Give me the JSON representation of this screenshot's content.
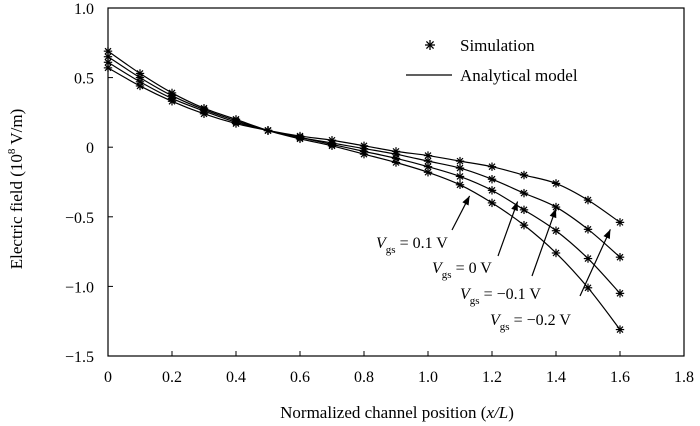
{
  "chart_data": {
    "type": "line",
    "xlabel": {
      "text": "Normalized channel position (",
      "italic": "x/L",
      "suffix": ")"
    },
    "ylabel": {
      "text": "Electric field (10",
      "sup": "8",
      "suffix": " V/m)"
    },
    "xlim": [
      0,
      1.8
    ],
    "ylim": [
      -1.5,
      1.0
    ],
    "x_ticks": [
      "0",
      "0.2",
      "0.4",
      "0.6",
      "0.8",
      "1.0",
      "1.2",
      "1.4",
      "1.6",
      "1.8"
    ],
    "y_ticks": [
      "1.0",
      "0.5",
      "0",
      "-0.5",
      "-1.0",
      "-1.5"
    ],
    "legend": [
      {
        "label": "Simulation",
        "marker": "star"
      },
      {
        "label": "Analytical model",
        "marker": "line"
      }
    ],
    "legend_position": "top-right",
    "grid": false,
    "series": [
      {
        "vgs": "0.1",
        "x": [
          0.0,
          0.1,
          0.2,
          0.3,
          0.4,
          0.5,
          0.6,
          0.7,
          0.8,
          0.9,
          1.0,
          1.1,
          1.2,
          1.3,
          1.4,
          1.5,
          1.6
        ],
        "y": [
          0.57,
          0.44,
          0.33,
          0.24,
          0.17,
          0.12,
          0.08,
          0.05,
          0.01,
          -0.03,
          -0.06,
          -0.1,
          -0.14,
          -0.2,
          -0.26,
          -0.38,
          -0.54
        ]
      },
      {
        "vgs": "0",
        "x": [
          0.0,
          0.1,
          0.2,
          0.3,
          0.4,
          0.5,
          0.6,
          0.7,
          0.8,
          0.9,
          1.0,
          1.1,
          1.2,
          1.3,
          1.4,
          1.5,
          1.6
        ],
        "y": [
          0.61,
          0.47,
          0.35,
          0.26,
          0.18,
          0.12,
          0.07,
          0.03,
          -0.01,
          -0.05,
          -0.1,
          -0.15,
          -0.23,
          -0.33,
          -0.43,
          -0.59,
          -0.79
        ]
      },
      {
        "vgs": "-0.1",
        "x": [
          0.0,
          0.1,
          0.2,
          0.3,
          0.4,
          0.5,
          0.6,
          0.7,
          0.8,
          0.9,
          1.0,
          1.1,
          1.2,
          1.3,
          1.4,
          1.5,
          1.6
        ],
        "y": [
          0.65,
          0.5,
          0.37,
          0.27,
          0.19,
          0.12,
          0.07,
          0.02,
          -0.03,
          -0.08,
          -0.14,
          -0.21,
          -0.31,
          -0.45,
          -0.6,
          -0.8,
          -1.05
        ]
      },
      {
        "vgs": "-0.2",
        "x": [
          0.0,
          0.1,
          0.2,
          0.3,
          0.4,
          0.5,
          0.6,
          0.7,
          0.8,
          0.9,
          1.0,
          1.1,
          1.2,
          1.3,
          1.4,
          1.5,
          1.6
        ],
        "y": [
          0.69,
          0.53,
          0.39,
          0.28,
          0.2,
          0.12,
          0.06,
          0.01,
          -0.05,
          -0.11,
          -0.18,
          -0.27,
          -0.4,
          -0.56,
          -0.76,
          -1.01,
          -1.31
        ]
      }
    ],
    "annotations": [
      {
        "prefix": "V",
        "sub": "gs",
        "value": " = 0.1 V",
        "arrow_to": [
          1.13,
          -0.35
        ]
      },
      {
        "prefix": "V",
        "sub": "gs",
        "value": " = 0 V",
        "arrow_to": [
          1.28,
          -0.39
        ]
      },
      {
        "prefix": "V",
        "sub": "gs",
        "value": " = −0.1 V",
        "arrow_to": [
          1.4,
          -0.44
        ]
      },
      {
        "prefix": "V",
        "sub": "gs",
        "value": " = −0.2 V",
        "arrow_to": [
          1.57,
          -0.59
        ]
      }
    ]
  }
}
